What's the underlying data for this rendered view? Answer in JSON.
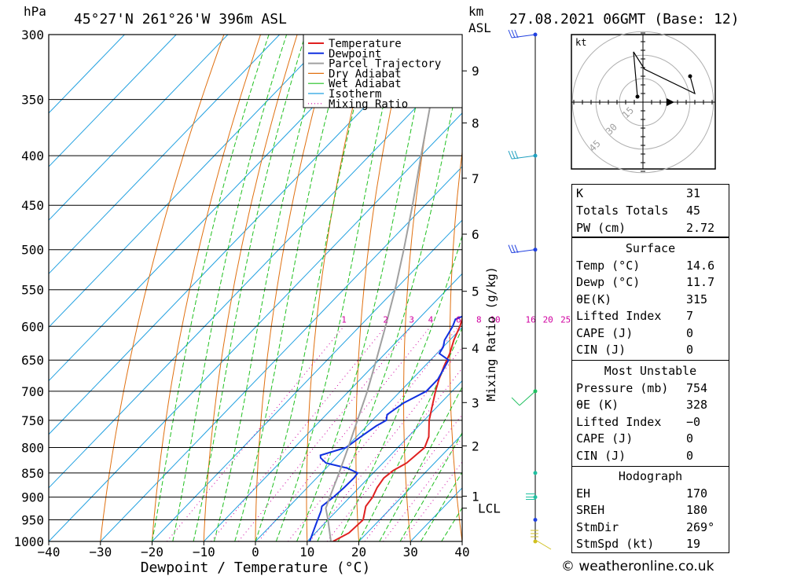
{
  "header": {
    "units_hpa": "hPa",
    "location": "45°27'N  261°26'W  396m  ASL",
    "km_label": "km",
    "asl_label": "ASL",
    "datetime": "27.08.2021  06GMT  (Base: 12)"
  },
  "chart_data": {
    "type": "line",
    "subtype": "skew-T log-p sounding",
    "xlabel": "Dewpoint / Temperature (°C)",
    "ylabel": "hPa",
    "secondary_ylabel": "Mixing Ratio (g/kg)",
    "xlim": [
      -40,
      40
    ],
    "ylim": [
      1000,
      300
    ],
    "x_ticks": [
      -40,
      -30,
      -20,
      -10,
      0,
      10,
      20,
      30,
      40
    ],
    "pressure_levels": [
      300,
      350,
      400,
      450,
      500,
      550,
      600,
      650,
      700,
      750,
      800,
      850,
      900,
      950,
      1000
    ],
    "km_ticks": [
      {
        "label": "9",
        "p": 327
      },
      {
        "label": "8",
        "p": 370
      },
      {
        "label": "7",
        "p": 422
      },
      {
        "label": "6",
        "p": 482
      },
      {
        "label": "5",
        "p": 552
      },
      {
        "label": "4",
        "p": 632
      },
      {
        "label": "3",
        "p": 719
      },
      {
        "label": "2",
        "p": 797
      },
      {
        "label": "1",
        "p": 898
      }
    ],
    "lcl_label": "LCL",
    "lcl_pressure": 924,
    "mixing_ratio_labels": [
      "1",
      "2",
      "3",
      "4",
      "6",
      "8",
      "10",
      "16",
      "20",
      "25"
    ],
    "mixing_ratio_values": [
      1,
      2,
      3,
      4,
      6,
      8,
      10,
      16,
      20,
      25
    ],
    "legend": [
      "Temperature",
      "Dewpoint",
      "Parcel Trajectory",
      "Dry Adiabat",
      "Wet Adiabat",
      "Isotherm",
      "Mixing Ratio"
    ],
    "legend_position": "top-right",
    "colors": {
      "temperature": "#e02020",
      "dewpoint": "#1030e0",
      "parcel": "#a0a0a0",
      "dry_adiabat": "#e07010",
      "wet_adiabat": "#20c020",
      "isotherm": "#20a0e0",
      "mixing_ratio": "#d000a0"
    },
    "series": [
      {
        "name": "Temperature",
        "points": [
          [
            1000,
            15.0
          ],
          [
            980,
            16.5
          ],
          [
            950,
            16.8
          ],
          [
            920,
            14.8
          ],
          [
            900,
            14.4
          ],
          [
            880,
            13.5
          ],
          [
            860,
            13.0
          ],
          [
            845,
            13.4
          ],
          [
            830,
            14.6
          ],
          [
            800,
            15.2
          ],
          [
            780,
            14.0
          ],
          [
            750,
            11.0
          ],
          [
            720,
            8.5
          ],
          [
            700,
            6.8
          ],
          [
            680,
            5.2
          ],
          [
            660,
            3.8
          ],
          [
            640,
            2.5
          ],
          [
            620,
            0.8
          ],
          [
            600,
            -0.6
          ],
          [
            580,
            -2.4
          ],
          [
            560,
            -4.0
          ],
          [
            540,
            -6.0
          ],
          [
            520,
            -8.3
          ],
          [
            505,
            -10.5
          ],
          [
            495,
            -9.0
          ],
          [
            485,
            -10.0
          ],
          [
            470,
            -12.5
          ],
          [
            450,
            -14.5
          ],
          [
            430,
            -16.5
          ],
          [
            410,
            -19.5
          ],
          [
            390,
            -22.0
          ],
          [
            370,
            -25.0
          ],
          [
            350,
            -28.2
          ],
          [
            330,
            -32.0
          ],
          [
            315,
            -34.0
          ],
          [
            300,
            -36.5
          ]
        ]
      },
      {
        "name": "Dewpoint",
        "points": [
          [
            1000,
            10.5
          ],
          [
            980,
            9.5
          ],
          [
            960,
            8.5
          ],
          [
            940,
            7.5
          ],
          [
            930,
            7.0
          ],
          [
            920,
            6.3
          ],
          [
            900,
            6.8
          ],
          [
            880,
            7.1
          ],
          [
            860,
            7.2
          ],
          [
            850,
            7.0
          ],
          [
            840,
            4.0
          ],
          [
            830,
            -1.0
          ],
          [
            820,
            -3.0
          ],
          [
            815,
            -3.5
          ],
          [
            800,
            0.0
          ],
          [
            780,
            0.8
          ],
          [
            760,
            1.8
          ],
          [
            750,
            2.7
          ],
          [
            740,
            1.8
          ],
          [
            720,
            2.8
          ],
          [
            700,
            5.0
          ],
          [
            680,
            5.0
          ],
          [
            650,
            3.5
          ],
          [
            640,
            0.5
          ],
          [
            630,
            0.0
          ],
          [
            620,
            -1.0
          ],
          [
            610,
            -1.5
          ],
          [
            600,
            -2.0
          ],
          [
            590,
            -2.8
          ],
          [
            580,
            -0.8
          ],
          [
            560,
            0.8
          ],
          [
            540,
            1.0
          ],
          [
            520,
            1.0
          ],
          [
            505,
            0.3
          ],
          [
            498,
            -9.0
          ],
          [
            490,
            -8.5
          ],
          [
            480,
            -7.8
          ],
          [
            470,
            -6.5
          ],
          [
            460,
            -9.0
          ],
          [
            450,
            -13.5
          ],
          [
            440,
            -15.5
          ],
          [
            430,
            -14.5
          ],
          [
            410,
            -12.5
          ],
          [
            400,
            -12.5
          ],
          [
            385,
            -14.0
          ],
          [
            375,
            -17.0
          ],
          [
            365,
            -19.0
          ],
          [
            358,
            -18.0
          ],
          [
            350,
            -21.0
          ],
          [
            340,
            -21.0
          ],
          [
            320,
            -23.5
          ],
          [
            310,
            -21.0
          ],
          [
            300,
            -23.5
          ]
        ]
      },
      {
        "name": "Parcel Trajectory",
        "points": [
          [
            1000,
            14.6
          ],
          [
            950,
            10.0
          ],
          [
            924,
            7.4
          ],
          [
            900,
            6.1
          ],
          [
            850,
            3.4
          ],
          [
            800,
            0.4
          ],
          [
            750,
            -2.9
          ],
          [
            700,
            -6.4
          ],
          [
            650,
            -10.5
          ],
          [
            600,
            -15.0
          ],
          [
            550,
            -20.0
          ],
          [
            500,
            -25.8
          ],
          [
            450,
            -32.4
          ],
          [
            400,
            -40.0
          ],
          [
            350,
            -48.5
          ],
          [
            300,
            -58.5
          ]
        ]
      }
    ],
    "wind_barbs_pressure": [
      300,
      400,
      500,
      700,
      850,
      900,
      950,
      1000
    ],
    "hodograph": {
      "unit_label": "kt",
      "ring_labels": [
        "15",
        "30",
        "45"
      ],
      "ring_values": [
        15,
        30,
        45
      ],
      "points": [
        [
          1,
          2
        ],
        [
          3,
          4
        ],
        [
          9,
          2
        ],
        [
          22,
          4
        ],
        [
          31,
          16
        ]
      ]
    }
  },
  "indices": {
    "rows": [
      {
        "label": "K",
        "value": "31"
      },
      {
        "label": "Totals Totals",
        "value": "45"
      },
      {
        "label": "PW (cm)",
        "value": "2.72"
      }
    ]
  },
  "surface": {
    "title": "Surface",
    "rows": [
      {
        "label": "Temp (°C)",
        "value": "14.6"
      },
      {
        "label": "Dewp (°C)",
        "value": "11.7"
      },
      {
        "label": "θE(K)",
        "value": "315"
      },
      {
        "label": "Lifted Index",
        "value": "7"
      },
      {
        "label": "CAPE (J)",
        "value": "0"
      },
      {
        "label": "CIN (J)",
        "value": "0"
      }
    ]
  },
  "most_unstable": {
    "title": "Most Unstable",
    "rows": [
      {
        "label": "Pressure (mb)",
        "value": "754"
      },
      {
        "label": "θE (K)",
        "value": "328"
      },
      {
        "label": "Lifted Index",
        "value": "−0"
      },
      {
        "label": "CAPE (J)",
        "value": "0"
      },
      {
        "label": "CIN (J)",
        "value": "0"
      }
    ]
  },
  "hodograph_table": {
    "title": "Hodograph",
    "rows": [
      {
        "label": "EH",
        "value": "170"
      },
      {
        "label": "SREH",
        "value": "180"
      },
      {
        "label": "StmDir",
        "value": "269°"
      },
      {
        "label": "StmSpd (kt)",
        "value": "19"
      }
    ]
  },
  "footer": {
    "credit": "© weatheronline.co.uk"
  }
}
